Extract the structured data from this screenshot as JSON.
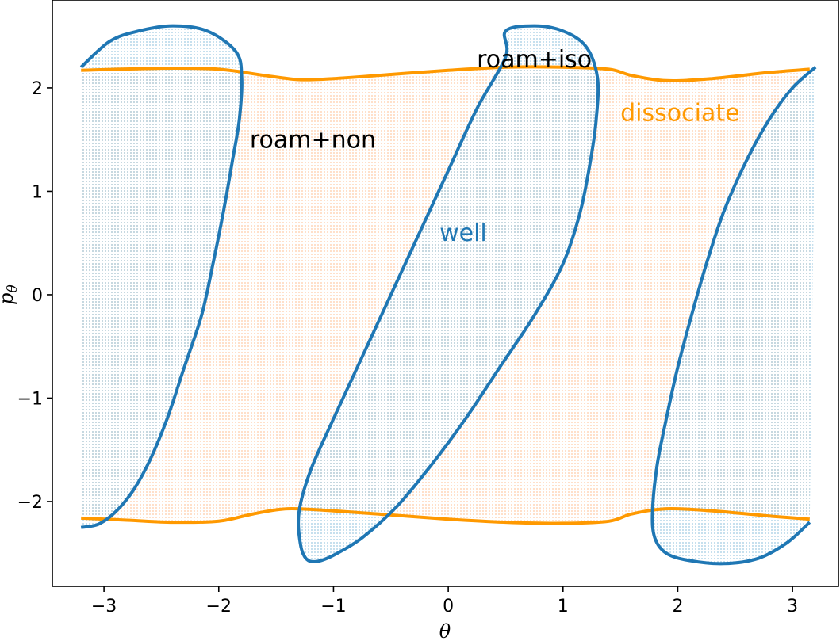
{
  "chart_data": {
    "type": "line",
    "title": "",
    "xlabel": "θ",
    "ylabel": "p",
    "ylabel_subscript": "θ",
    "xlim": [
      -3.45,
      3.4
    ],
    "ylim": [
      -2.82,
      2.85
    ],
    "xticks": [
      -3,
      -2,
      -1,
      0,
      1,
      2,
      3
    ],
    "yticks": [
      -2,
      -1,
      0,
      1,
      2
    ],
    "xtick_labels": [
      "−3",
      "−2",
      "−1",
      "0",
      "1",
      "2",
      "3"
    ],
    "ytick_labels": [
      "−2",
      "−1",
      "0",
      "1",
      "2"
    ],
    "grid": false,
    "colors": {
      "well": "#1f77b4",
      "dissociate": "#ff9900",
      "fill_well": "#9ecae1",
      "fill_roam": "#ffc9a3",
      "text": "#000000"
    },
    "dissociation_boundary": {
      "name": "dissociate",
      "upper": {
        "x": [
          -3.2,
          -2.5,
          -2.0,
          -1.6,
          -1.3,
          -1.0,
          -0.5,
          0.0,
          0.5,
          1.0,
          1.4,
          1.6,
          1.9,
          2.3,
          2.8,
          3.15
        ],
        "y": [
          2.17,
          2.19,
          2.18,
          2.12,
          2.08,
          2.09,
          2.13,
          2.17,
          2.2,
          2.2,
          2.18,
          2.12,
          2.07,
          2.09,
          2.15,
          2.18
        ]
      },
      "lower": {
        "x": [
          -3.2,
          -2.8,
          -2.4,
          -2.0,
          -1.7,
          -1.4,
          -1.0,
          -0.5,
          0.0,
          0.5,
          1.0,
          1.4,
          1.6,
          1.9,
          2.3,
          2.8,
          3.15
        ],
        "y": [
          -2.16,
          -2.18,
          -2.2,
          -2.19,
          -2.12,
          -2.07,
          -2.09,
          -2.13,
          -2.17,
          -2.2,
          -2.21,
          -2.19,
          -2.12,
          -2.07,
          -2.09,
          -2.14,
          -2.17
        ]
      }
    },
    "well_boundary": {
      "name": "well",
      "center": {
        "x": [
          0.5,
          0.75,
          1.0,
          1.2,
          1.3,
          1.29,
          1.24,
          1.15,
          1.0,
          0.75,
          0.45,
          0.15,
          -0.15,
          -0.45,
          -0.75,
          -1.0,
          -1.15,
          -1.24,
          -1.29,
          -1.3,
          -1.2,
          -1.0,
          -0.75,
          -0.5,
          -0.25,
          0.0,
          0.25,
          0.5
        ],
        "y": [
          2.55,
          2.6,
          2.55,
          2.4,
          2.1,
          1.7,
          1.3,
          0.8,
          0.3,
          -0.2,
          -0.7,
          -1.2,
          -1.65,
          -2.05,
          -2.35,
          -2.52,
          -2.58,
          -2.55,
          -2.4,
          -2.1,
          -1.7,
          -1.2,
          -0.6,
          0.0,
          0.6,
          1.2,
          1.8,
          2.3
        ]
      },
      "left": {
        "x": [
          -3.2,
          -2.95,
          -2.7,
          -2.4,
          -2.1,
          -1.85,
          -1.8,
          -1.82,
          -1.88,
          -1.96,
          -2.05,
          -2.15,
          -2.3,
          -2.45,
          -2.6,
          -2.75,
          -2.9,
          -3.05,
          -3.2
        ],
        "y": [
          2.2,
          2.45,
          2.55,
          2.6,
          2.55,
          2.35,
          2.1,
          1.7,
          1.3,
          0.8,
          0.3,
          -0.2,
          -0.7,
          -1.2,
          -1.6,
          -1.9,
          -2.1,
          -2.22,
          -2.25
        ]
      },
      "right": {
        "x": [
          3.2,
          3.0,
          2.8,
          2.6,
          2.4,
          2.25,
          2.12,
          2.0,
          1.9,
          1.82,
          1.78,
          1.8,
          1.9,
          2.1,
          2.4,
          2.7,
          2.95,
          3.15
        ],
        "y": [
          2.2,
          2.0,
          1.7,
          1.3,
          0.8,
          0.3,
          -0.2,
          -0.7,
          -1.2,
          -1.65,
          -2.1,
          -2.35,
          -2.5,
          -2.57,
          -2.6,
          -2.55,
          -2.4,
          -2.2
        ]
      }
    },
    "annotations": [
      {
        "text": "roam+iso",
        "x": 0.75,
        "y": 2.2,
        "color": "#000000"
      },
      {
        "text": "roam+non",
        "x": -1.18,
        "y": 1.42,
        "color": "#000000"
      },
      {
        "text": "dissociate",
        "x": 2.02,
        "y": 1.68,
        "color": "#ff9900"
      },
      {
        "text": "well",
        "x": 0.13,
        "y": 0.52,
        "color": "#1f77b4"
      }
    ]
  }
}
